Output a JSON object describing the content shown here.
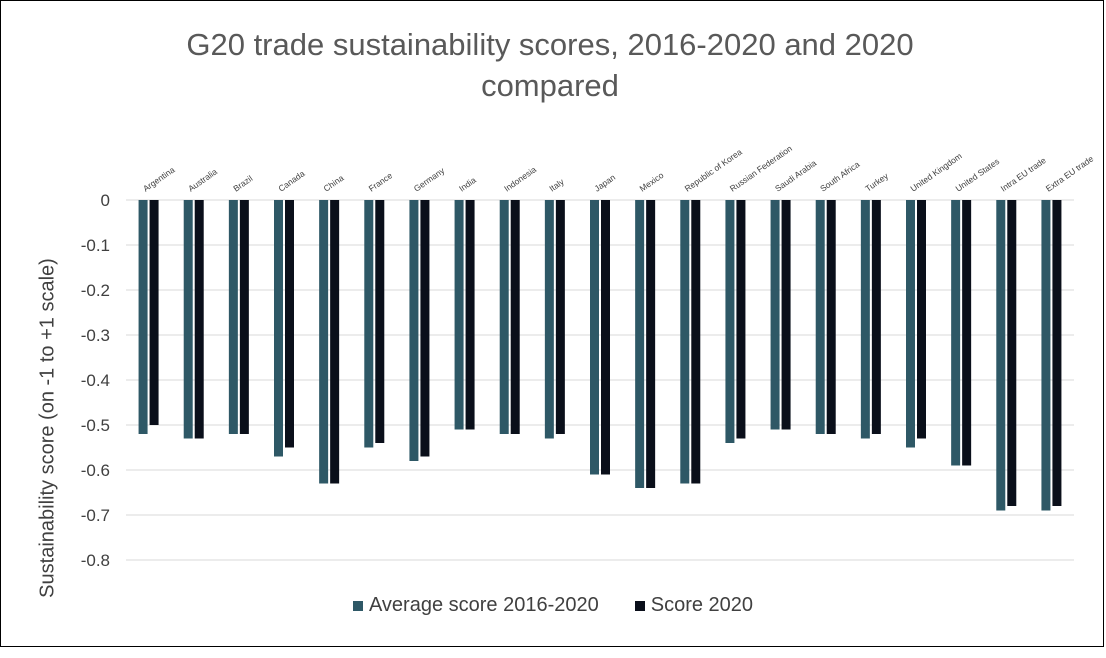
{
  "chart_data": {
    "type": "bar",
    "title": "G20 trade sustainability scores, 2016-2020 and 2020 compared",
    "title_line1": "G20 trade sustainability scores, 2016-2020 and 2020",
    "title_line2": "compared",
    "xlabel": "",
    "ylabel": "Sustainability score (on -1 to +1 scale)",
    "ylim": [
      -0.8,
      0
    ],
    "yticks": [
      0,
      -0.1,
      -0.2,
      -0.3,
      -0.4,
      -0.5,
      -0.6,
      -0.7,
      -0.8
    ],
    "ytick_labels": [
      "0",
      "-0.1",
      "-0.2",
      "-0.3",
      "-0.4",
      "-0.5",
      "-0.6",
      "-0.7",
      "-0.8"
    ],
    "grid": true,
    "legend_position": "bottom",
    "categories": [
      "Argentina",
      "Australia",
      "Brazil",
      "Canada",
      "China",
      "France",
      "Germany",
      "India",
      "Indonesia",
      "Italy",
      "Japan",
      "Mexico",
      "Republic of Korea",
      "Russian Federation",
      "Saudi Arabia",
      "South Africa",
      "Turkey",
      "United Kingdom",
      "United States",
      "Intra EU trade",
      "Extra EU trade"
    ],
    "series": [
      {
        "name": "Average score 2016-2020",
        "color": "#2e5866",
        "values": [
          -0.52,
          -0.53,
          -0.52,
          -0.57,
          -0.63,
          -0.55,
          -0.58,
          -0.51,
          -0.52,
          -0.53,
          -0.61,
          -0.64,
          -0.63,
          -0.54,
          -0.51,
          -0.52,
          -0.53,
          -0.55,
          -0.59,
          -0.69,
          -0.69
        ]
      },
      {
        "name": "Score 2020",
        "color": "#0a0f1a",
        "values": [
          -0.5,
          -0.53,
          -0.52,
          -0.55,
          -0.63,
          -0.54,
          -0.57,
          -0.51,
          -0.52,
          -0.52,
          -0.61,
          -0.64,
          -0.63,
          -0.53,
          -0.51,
          -0.52,
          -0.52,
          -0.53,
          -0.59,
          -0.68,
          -0.68
        ]
      }
    ]
  }
}
